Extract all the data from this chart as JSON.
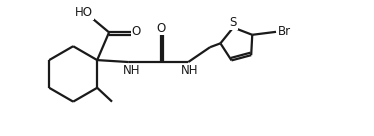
{
  "background_color": "#ffffff",
  "line_color": "#1a1a1a",
  "line_width": 1.6,
  "font_size": 8.5,
  "figsize": [
    3.74,
    1.36
  ],
  "dpi": 100,
  "xlim": [
    0.0,
    3.74
  ],
  "ylim": [
    0.0,
    1.36
  ]
}
